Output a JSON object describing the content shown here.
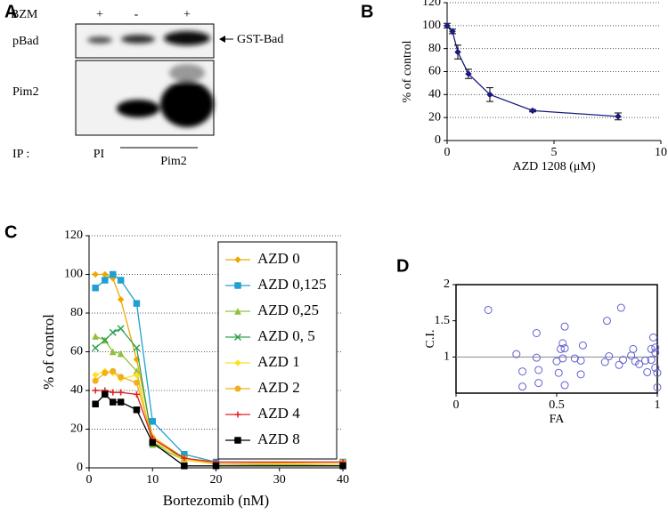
{
  "chart_data": [
    {
      "type": "blot",
      "panel": "A",
      "treatment_label": "BZM",
      "treatments": [
        "+",
        "-",
        "+"
      ],
      "rows": [
        "pBad",
        "Pim2"
      ],
      "annotation": "GST-Bad",
      "ip_label": "IP :",
      "lanes": [
        "PI",
        "Pim2"
      ]
    },
    {
      "type": "line",
      "panel": "B",
      "xlabel": "AZD 1208 (μM)",
      "ylabel": "% of control",
      "color": "#1a1a80",
      "x": [
        0,
        0.25,
        0.5,
        1,
        2,
        4,
        8
      ],
      "values": [
        100,
        95,
        77,
        58,
        40,
        26,
        21
      ],
      "errors": [
        2,
        2,
        6,
        4,
        6,
        1,
        3
      ],
      "xlim": [
        0,
        10
      ],
      "xticks": [
        0,
        5,
        10
      ],
      "ylim": [
        0,
        120
      ],
      "yticks": [
        0,
        20,
        40,
        60,
        80,
        100,
        120
      ],
      "grid": true
    },
    {
      "type": "line",
      "panel": "C",
      "xlabel": "Bortezomib (nM)",
      "ylabel": "% of control",
      "x": [
        1,
        2.5,
        3.75,
        5,
        7.5,
        10,
        15,
        20,
        40
      ],
      "series": [
        {
          "name": "AZD 0",
          "color": "#f0a800",
          "marker": "diamond",
          "values": [
            100,
            100,
            98,
            87,
            56,
            16,
            5,
            2,
            2
          ]
        },
        {
          "name": "AZD 0,125",
          "color": "#20a0d0",
          "marker": "square",
          "values": [
            93,
            97,
            100,
            97,
            85,
            24,
            7,
            3,
            3
          ]
        },
        {
          "name": "AZD 0,25",
          "color": "#90c040",
          "marker": "triangle",
          "values": [
            68,
            66,
            60,
            59,
            50,
            12,
            4,
            2,
            1
          ]
        },
        {
          "name": "AZD 0, 5",
          "color": "#30a050",
          "marker": "cross",
          "values": [
            62,
            66,
            70,
            72,
            62,
            13,
            5,
            2,
            2
          ]
        },
        {
          "name": "AZD 1",
          "color": "#ffe020",
          "marker": "diamond",
          "values": [
            48,
            50,
            49,
            46,
            48,
            14,
            4,
            2,
            2
          ]
        },
        {
          "name": "AZD 2",
          "color": "#f0b020",
          "marker": "circle",
          "values": [
            45,
            49,
            50,
            47,
            44,
            15,
            5,
            2,
            3
          ]
        },
        {
          "name": "AZD 4",
          "color": "#e02020",
          "marker": "plus",
          "values": [
            40,
            40,
            39,
            39,
            38,
            15,
            5,
            3,
            3
          ]
        },
        {
          "name": "AZD 8",
          "color": "#000000",
          "marker": "square",
          "values": [
            33,
            38,
            34,
            34,
            30,
            13,
            1,
            1,
            1
          ]
        }
      ],
      "xlim": [
        0,
        40
      ],
      "xticks": [
        0,
        10,
        20,
        30,
        40
      ],
      "ylim": [
        0,
        120
      ],
      "yticks": [
        0,
        20,
        40,
        60,
        80,
        100,
        120
      ],
      "grid": true,
      "legend": "upper right"
    },
    {
      "type": "scatter",
      "panel": "D",
      "xlabel": "FA",
      "ylabel": "C.I.",
      "color": "#6060d0",
      "hline": 1,
      "x": [
        0.16,
        0.3,
        0.33,
        0.33,
        0.4,
        0.4,
        0.41,
        0.41,
        0.5,
        0.51,
        0.52,
        0.53,
        0.54,
        0.54,
        0.53,
        0.54,
        0.59,
        0.62,
        0.62,
        0.63,
        0.75,
        0.74,
        0.76,
        0.82,
        0.81,
        0.83,
        0.87,
        0.88,
        0.89,
        0.91,
        0.94,
        0.97,
        0.97,
        0.99,
        0.99,
        0.98,
        0.99,
        1.0,
        1.0,
        0.95
      ],
      "values": [
        1.65,
        1.04,
        0.8,
        0.59,
        1.33,
        0.99,
        0.82,
        0.64,
        0.94,
        0.78,
        1.11,
        1.19,
        1.12,
        1.42,
        0.98,
        0.61,
        0.98,
        0.95,
        0.76,
        1.16,
        1.5,
        0.93,
        1.01,
        1.68,
        0.89,
        0.96,
        1.02,
        1.11,
        0.94,
        0.9,
        0.95,
        1.11,
        0.96,
        1.06,
        1.13,
        1.27,
        0.85,
        0.78,
        0.58,
        0.79
      ],
      "xlim": [
        0,
        1
      ],
      "xticks": [
        0,
        0.5,
        1
      ],
      "ylim": [
        0.5,
        2
      ],
      "yticks": [
        1,
        1.5,
        2
      ]
    }
  ]
}
